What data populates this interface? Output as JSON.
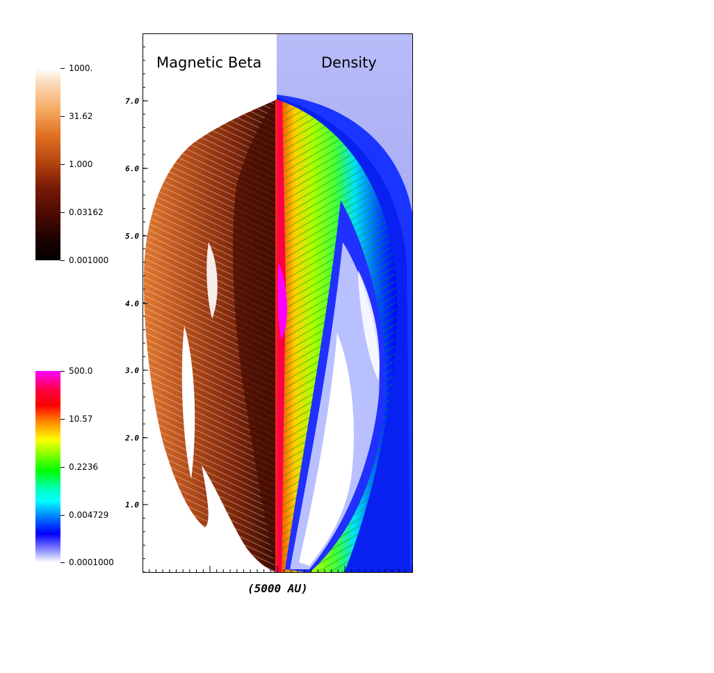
{
  "panels": {
    "left_title": "Magnetic Beta",
    "right_title": "Density"
  },
  "axes": {
    "xlabel": "(5000 AU)",
    "y_ticks": [
      "1.0",
      "2.0",
      "3.0",
      "4.0",
      "5.0",
      "6.0",
      "7.0"
    ]
  },
  "colorbars": {
    "beta": {
      "labels": [
        "1000.",
        "31.62",
        "1.000",
        "0.03162",
        "0.001000"
      ],
      "colors": [
        "#ffffff",
        "#f5b070",
        "#e07020",
        "#a83a10",
        "#5a1004",
        "#000000"
      ]
    },
    "density": {
      "labels": [
        "500.0",
        "10.57",
        "0.2236",
        "0.004729",
        "0.0001000"
      ],
      "colors": [
        "#ff00ff",
        "#ff0000",
        "#ff8000",
        "#ffff00",
        "#00ff00",
        "#00ffff",
        "#0040ff",
        "#0000ff",
        "#ffffff"
      ]
    }
  }
}
